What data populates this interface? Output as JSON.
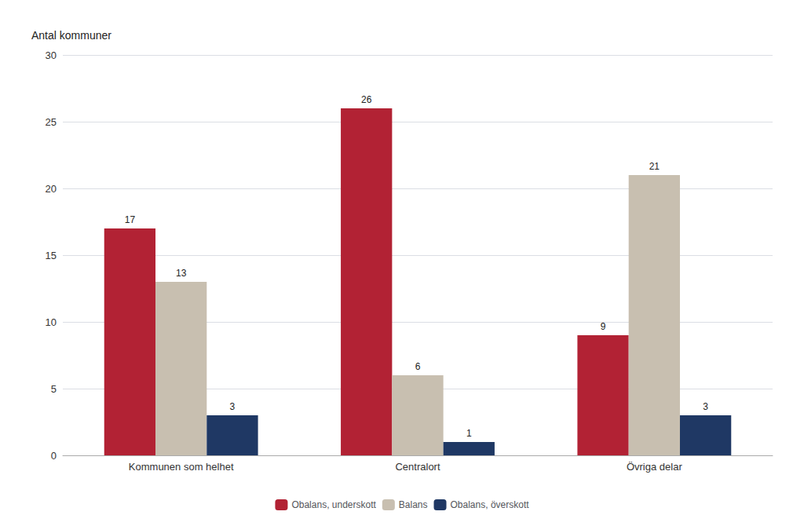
{
  "chart_data": {
    "type": "bar",
    "ylabel": "Antal kommuner",
    "categories": [
      "Kommunen som helhet",
      "Centralort",
      "Övriga delar"
    ],
    "series": [
      {
        "name": "Obalans, underskott",
        "color": "#B22234",
        "values": [
          17,
          26,
          9
        ]
      },
      {
        "name": "Balans",
        "color": "#C8BFB0",
        "values": [
          13,
          6,
          21
        ]
      },
      {
        "name": "Obalans, överskott",
        "color": "#1F3864",
        "values": [
          3,
          1,
          3
        ]
      }
    ],
    "ylim": [
      0,
      30
    ],
    "yticks": [
      0,
      5,
      10,
      15,
      20,
      25,
      30
    ],
    "grid": true,
    "legend": "bottom",
    "data_labels": true
  }
}
